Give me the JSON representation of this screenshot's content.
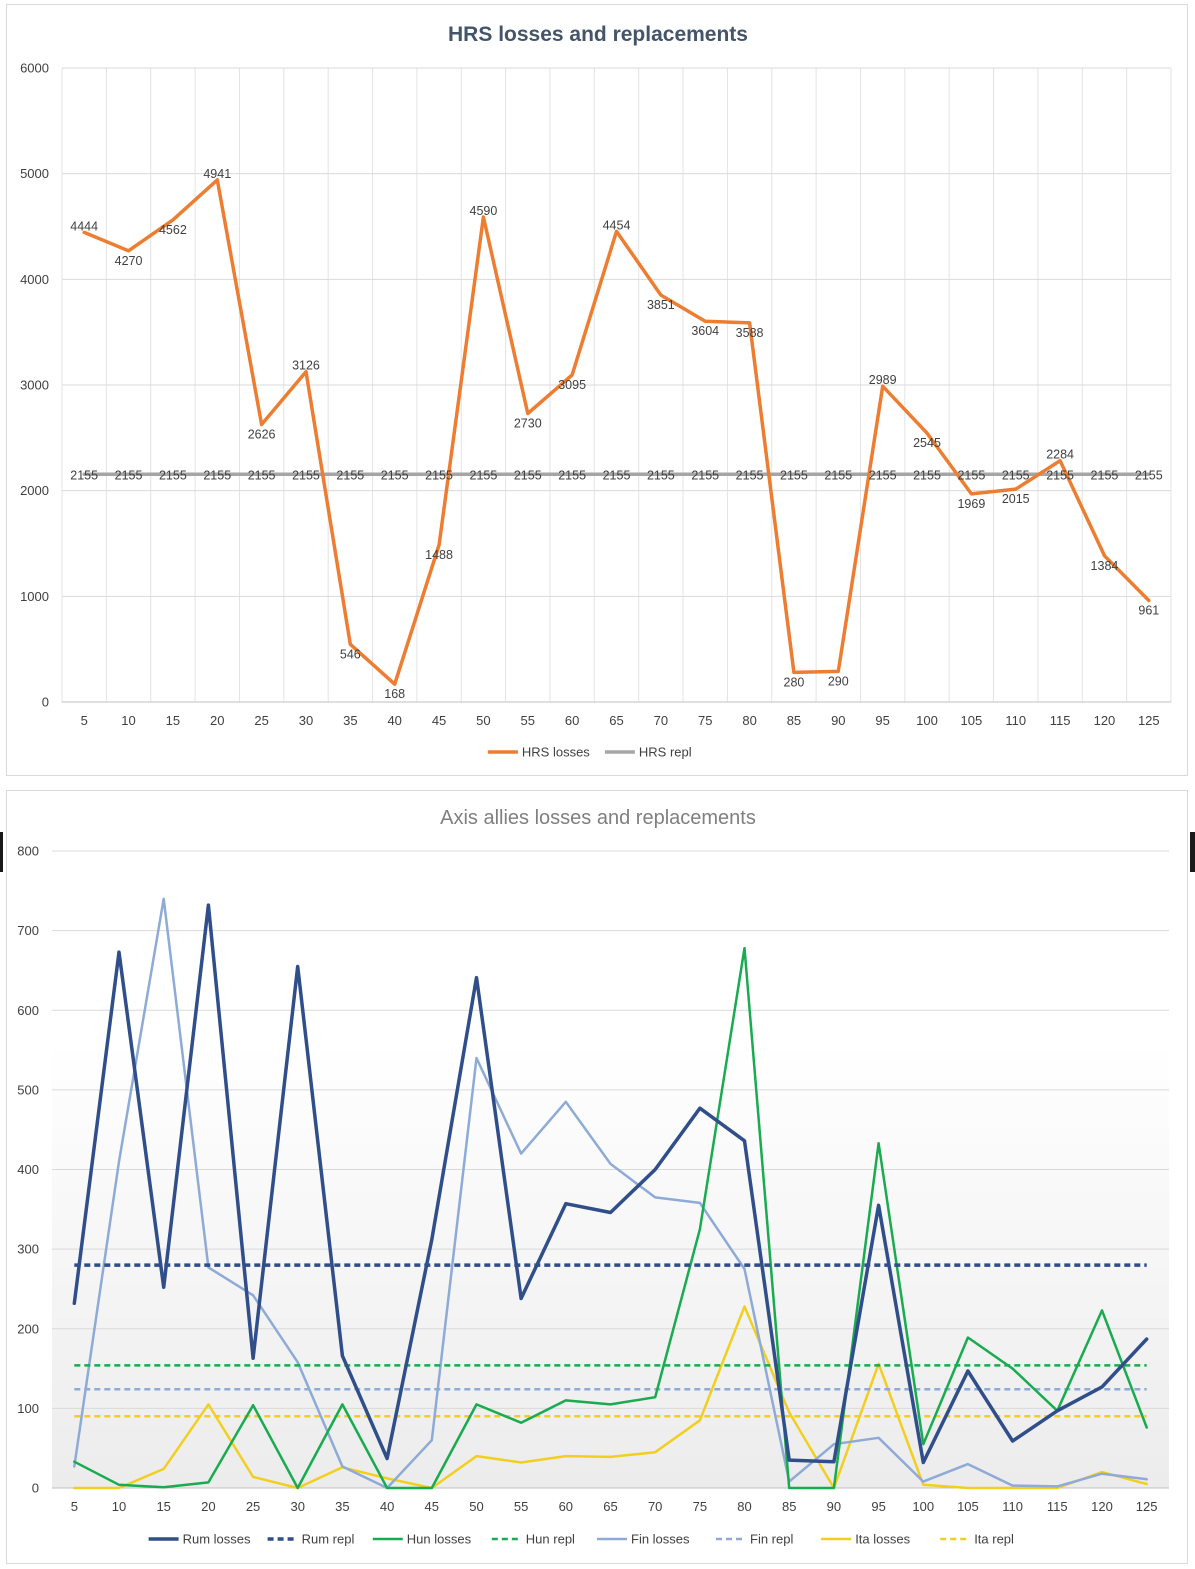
{
  "chart_data": [
    {
      "type": "line",
      "title": "HRS losses and replacements",
      "xlabel": "",
      "ylabel": "",
      "ylim": [
        0,
        6000
      ],
      "yticks": [
        0,
        1000,
        2000,
        3000,
        4000,
        5000,
        6000
      ],
      "x": [
        5,
        10,
        15,
        20,
        25,
        30,
        35,
        40,
        45,
        50,
        55,
        60,
        65,
        70,
        75,
        80,
        85,
        90,
        95,
        100,
        105,
        110,
        115,
        120,
        125
      ],
      "series": [
        {
          "name": "HRS losses",
          "color": "#ed7d31",
          "dash": false,
          "labels": true,
          "values": [
            4444,
            4270,
            4562,
            4941,
            2626,
            3126,
            546,
            168,
            1488,
            4590,
            2730,
            3095,
            4454,
            3851,
            3604,
            3588,
            280,
            290,
            2989,
            2545,
            1969,
            2015,
            2284,
            1384,
            961
          ]
        },
        {
          "name": "HRS repl",
          "color": "#a5a5a5",
          "dash": false,
          "labels": true,
          "values": [
            2155,
            2155,
            2155,
            2155,
            2155,
            2155,
            2155,
            2155,
            2155,
            2155,
            2155,
            2155,
            2155,
            2155,
            2155,
            2155,
            2155,
            2155,
            2155,
            2155,
            2155,
            2155,
            2155,
            2155,
            2155
          ]
        }
      ],
      "grid": true,
      "legend": "bottom"
    },
    {
      "type": "line",
      "title": "Axis allies losses and replacements",
      "xlabel": "",
      "ylabel": "",
      "ylim": [
        0,
        800
      ],
      "yticks": [
        0,
        100,
        200,
        300,
        400,
        500,
        600,
        700,
        800
      ],
      "x": [
        5,
        10,
        15,
        20,
        25,
        30,
        35,
        40,
        45,
        50,
        55,
        60,
        65,
        70,
        75,
        80,
        85,
        90,
        95,
        100,
        105,
        110,
        115,
        120,
        125
      ],
      "series": [
        {
          "name": "Rum losses",
          "color": "#2f4e8a",
          "dash": false,
          "values": [
            232,
            673,
            252,
            732,
            163,
            655,
            166,
            37,
            312,
            641,
            238,
            357,
            346,
            400,
            477,
            436,
            35,
            33,
            355,
            32,
            147,
            59,
            97,
            127,
            187
          ]
        },
        {
          "name": "Rum repl",
          "color": "#2f4e8a",
          "dash": true,
          "values": [
            280,
            280,
            280,
            280,
            280,
            280,
            280,
            280,
            280,
            280,
            280,
            280,
            280,
            280,
            280,
            280,
            280,
            280,
            280,
            280,
            280,
            280,
            280,
            280,
            280
          ]
        },
        {
          "name": "Hun losses",
          "color": "#19ab4f",
          "dash": false,
          "values": [
            33,
            4,
            1,
            7,
            104,
            0,
            105,
            0,
            0,
            105,
            82,
            110,
            105,
            114,
            325,
            678,
            0,
            0,
            433,
            55,
            189,
            150,
            97,
            223,
            76
          ]
        },
        {
          "name": "Hun repl",
          "color": "#19ab4f",
          "dash": true,
          "values": [
            154,
            154,
            154,
            154,
            154,
            154,
            154,
            154,
            154,
            154,
            154,
            154,
            154,
            154,
            154,
            154,
            154,
            154,
            154,
            154,
            154,
            154,
            154,
            154,
            154
          ]
        },
        {
          "name": "Fin losses",
          "color": "#8eaad6",
          "dash": false,
          "values": [
            27,
            410,
            740,
            277,
            242,
            158,
            27,
            0,
            60,
            540,
            420,
            485,
            407,
            365,
            358,
            275,
            8,
            55,
            63,
            8,
            30,
            3,
            2,
            18,
            11
          ]
        },
        {
          "name": "Fin repl",
          "color": "#8eaad6",
          "dash": true,
          "values": [
            124,
            124,
            124,
            124,
            124,
            124,
            124,
            124,
            124,
            124,
            124,
            124,
            124,
            124,
            124,
            124,
            124,
            124,
            124,
            124,
            124,
            124,
            124,
            124,
            124
          ]
        },
        {
          "name": "Ita losses",
          "color": "#f2cf1f",
          "dash": false,
          "values": [
            0,
            0,
            24,
            105,
            14,
            0,
            26,
            12,
            0,
            40,
            32,
            40,
            39,
            45,
            85,
            228,
            95,
            0,
            156,
            4,
            0,
            0,
            0,
            20,
            5
          ]
        },
        {
          "name": "Ita repl",
          "color": "#f2cf1f",
          "dash": true,
          "values": [
            90,
            90,
            90,
            90,
            90,
            90,
            90,
            90,
            90,
            90,
            90,
            90,
            90,
            90,
            90,
            90,
            90,
            90,
            90,
            90,
            90,
            90,
            90,
            90,
            90
          ]
        }
      ],
      "grid": true,
      "legend": "bottom"
    }
  ]
}
